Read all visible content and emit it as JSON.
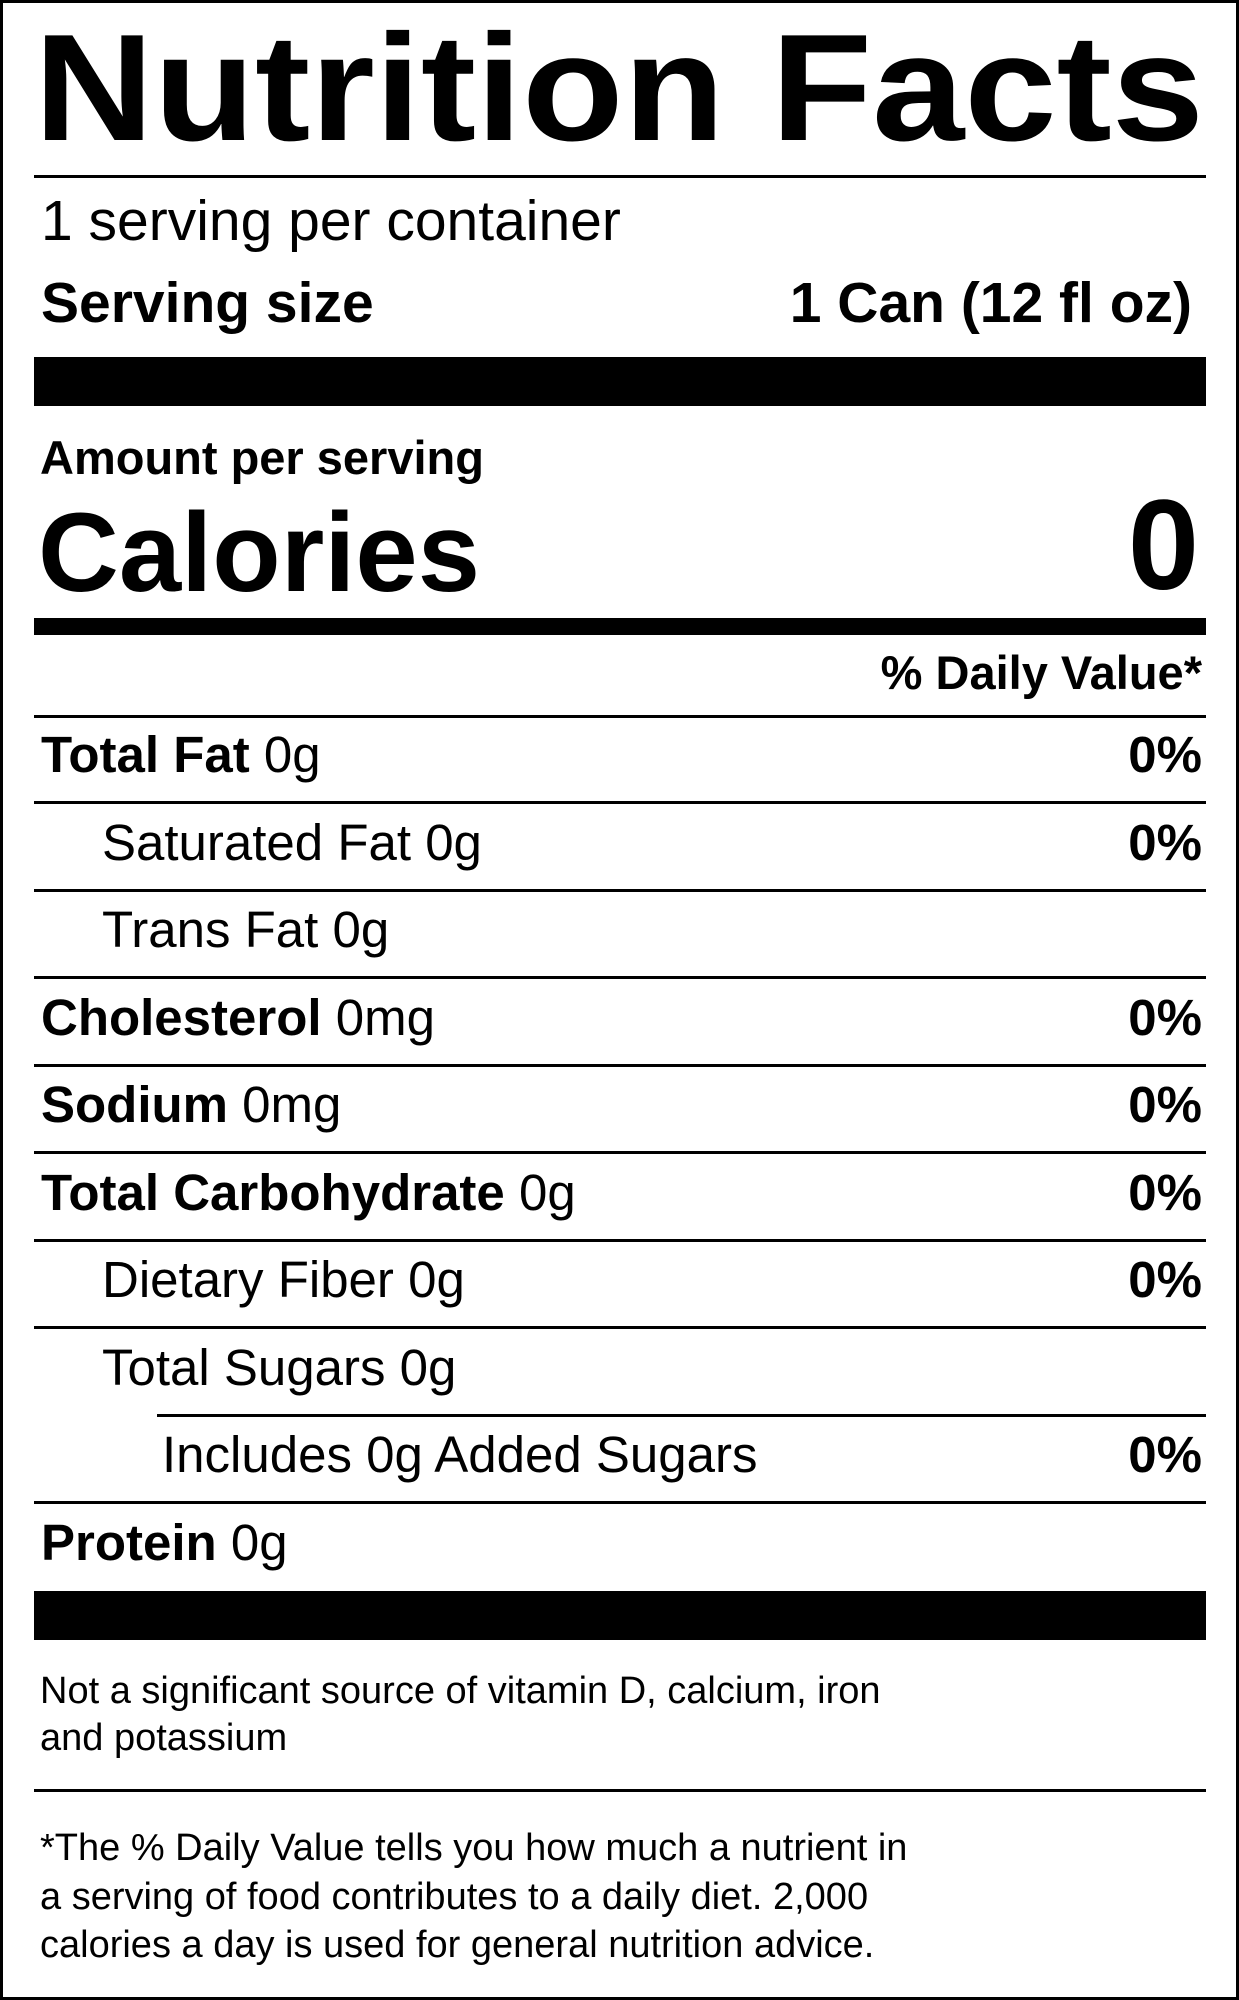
{
  "title": "Nutrition Facts",
  "servings_per_container": "1 serving per container",
  "serving_size": {
    "label": "Serving size",
    "value": "1 Can (12 fl oz)"
  },
  "amount_per_serving": "Amount per serving",
  "calories": {
    "label": "Calories",
    "value": "0"
  },
  "daily_value_header": "% Daily Value*",
  "nutrients": [
    {
      "name": "Total Fat",
      "amount": "0g",
      "dv": "0%",
      "level": 1
    },
    {
      "name": "Saturated Fat",
      "amount": "0g",
      "dv": "0%",
      "level": 2
    },
    {
      "name": "Trans Fat",
      "amount": "0g",
      "dv": "",
      "level": 2
    },
    {
      "name": "Cholesterol",
      "amount": "0mg",
      "dv": "0%",
      "level": 1
    },
    {
      "name": "Sodium",
      "amount": "0mg",
      "dv": "0%",
      "level": 1
    },
    {
      "name": "Total Carbohydrate",
      "amount": "0g",
      "dv": "0%",
      "level": 1
    },
    {
      "name": "Dietary Fiber",
      "amount": "0g",
      "dv": "0%",
      "level": 2
    },
    {
      "name": "Total Sugars",
      "amount": "0g",
      "dv": "",
      "level": 2
    },
    {
      "name": "Includes 0g Added Sugars",
      "amount": "",
      "dv": "0%",
      "level": 3
    },
    {
      "name": "Protein",
      "amount": "0g",
      "dv": "",
      "level": 1
    }
  ],
  "vitamins_note": [
    "Not a significant source of vitamin D, calcium, iron",
    "and potassium"
  ],
  "footnote": [
    "*The % Daily Value tells you how much a nutrient in",
    "a serving of food contributes to a daily diet. 2,000",
    "calories a day is used for general nutrition advice."
  ]
}
